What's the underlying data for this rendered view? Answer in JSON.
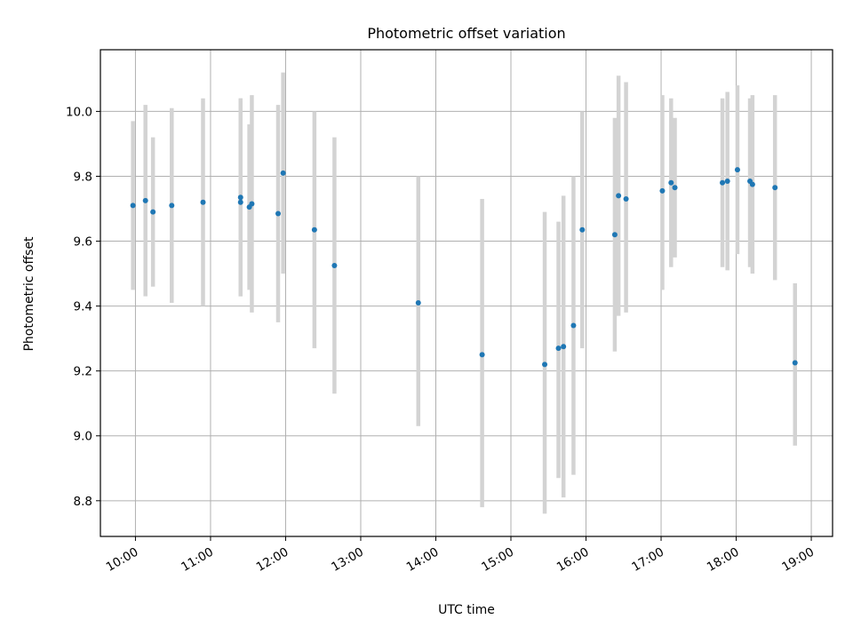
{
  "chart_data": {
    "type": "scatter",
    "title": "Photometric offset variation",
    "xlabel": "UTC time",
    "ylabel": "Photometric offset",
    "x_ticks": [
      "10:00",
      "11:00",
      "12:00",
      "13:00",
      "14:00",
      "15:00",
      "16:00",
      "17:00",
      "18:00",
      "19:00"
    ],
    "y_ticks": [
      "8.8",
      "9.0",
      "9.2",
      "9.4",
      "9.6",
      "9.8",
      "10.0"
    ],
    "xlim": [
      "09:32",
      "19:17"
    ],
    "ylim": [
      8.69,
      10.19
    ],
    "grid": true,
    "legend": "none",
    "points": [
      {
        "t": "09:58",
        "y": 9.71,
        "lo": 9.45,
        "hi": 9.97
      },
      {
        "t": "10:08",
        "y": 9.725,
        "lo": 9.43,
        "hi": 10.02
      },
      {
        "t": "10:14",
        "y": 9.69,
        "lo": 9.46,
        "hi": 9.92
      },
      {
        "t": "10:29",
        "y": 9.71,
        "lo": 9.41,
        "hi": 10.01
      },
      {
        "t": "10:54",
        "y": 9.72,
        "lo": 9.4,
        "hi": 10.04
      },
      {
        "t": "11:24",
        "y": 9.735,
        "lo": 9.43,
        "hi": 10.04
      },
      {
        "t": "11:24",
        "y": 9.72,
        "lo": 9.43,
        "hi": 10.04
      },
      {
        "t": "11:31",
        "y": 9.705,
        "lo": 9.45,
        "hi": 9.96
      },
      {
        "t": "11:33",
        "y": 9.715,
        "lo": 9.38,
        "hi": 10.05
      },
      {
        "t": "11:54",
        "y": 9.685,
        "lo": 9.35,
        "hi": 10.02
      },
      {
        "t": "11:58",
        "y": 9.81,
        "lo": 9.5,
        "hi": 10.12
      },
      {
        "t": "12:23",
        "y": 9.635,
        "lo": 9.27,
        "hi": 10.0
      },
      {
        "t": "12:39",
        "y": 9.525,
        "lo": 9.13,
        "hi": 9.92
      },
      {
        "t": "13:46",
        "y": 9.41,
        "lo": 9.03,
        "hi": 9.8
      },
      {
        "t": "14:37",
        "y": 9.25,
        "lo": 8.78,
        "hi": 9.73
      },
      {
        "t": "15:27",
        "y": 9.22,
        "lo": 8.76,
        "hi": 9.69
      },
      {
        "t": "15:38",
        "y": 9.27,
        "lo": 8.87,
        "hi": 9.66
      },
      {
        "t": "15:42",
        "y": 9.275,
        "lo": 8.81,
        "hi": 9.74
      },
      {
        "t": "15:50",
        "y": 9.34,
        "lo": 8.88,
        "hi": 9.8
      },
      {
        "t": "15:57",
        "y": 9.635,
        "lo": 9.27,
        "hi": 10.0
      },
      {
        "t": "16:23",
        "y": 9.62,
        "lo": 9.26,
        "hi": 9.98
      },
      {
        "t": "16:26",
        "y": 9.74,
        "lo": 9.37,
        "hi": 10.11
      },
      {
        "t": "16:32",
        "y": 9.73,
        "lo": 9.38,
        "hi": 10.09
      },
      {
        "t": "17:01",
        "y": 9.755,
        "lo": 9.45,
        "hi": 10.05
      },
      {
        "t": "17:08",
        "y": 9.78,
        "lo": 9.52,
        "hi": 10.04
      },
      {
        "t": "17:11",
        "y": 9.765,
        "lo": 9.55,
        "hi": 9.98
      },
      {
        "t": "17:49",
        "y": 9.78,
        "lo": 9.52,
        "hi": 10.04
      },
      {
        "t": "17:53",
        "y": 9.785,
        "lo": 9.51,
        "hi": 10.06
      },
      {
        "t": "18:01",
        "y": 9.82,
        "lo": 9.56,
        "hi": 10.08
      },
      {
        "t": "18:11",
        "y": 9.785,
        "lo": 9.52,
        "hi": 10.04
      },
      {
        "t": "18:13",
        "y": 9.775,
        "lo": 9.5,
        "hi": 10.05
      },
      {
        "t": "18:31",
        "y": 9.765,
        "lo": 9.48,
        "hi": 10.05
      },
      {
        "t": "18:47",
        "y": 9.225,
        "lo": 8.97,
        "hi": 9.47
      }
    ],
    "colors": {
      "point": "#1f77b4",
      "errorbar": "#d3d3d3",
      "grid": "#b0b0b0",
      "axes": "#000000"
    }
  }
}
